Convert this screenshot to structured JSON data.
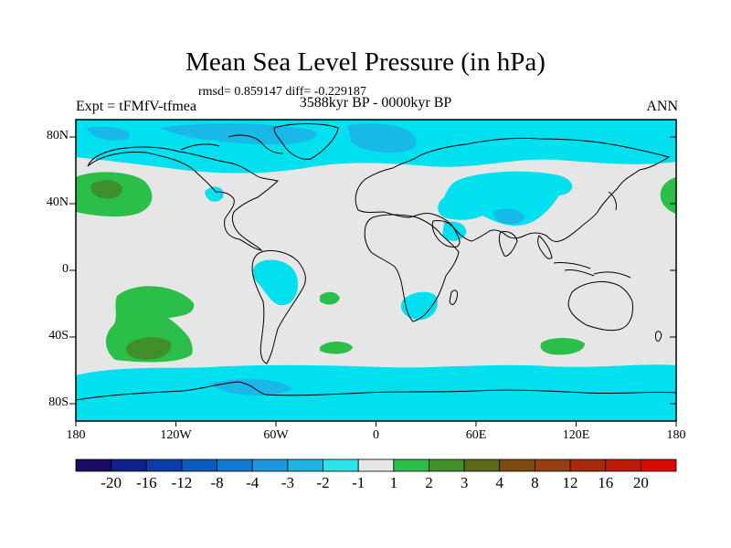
{
  "header": {
    "title": "Mean Sea Level Pressure (in hPa)",
    "stats": "rmsd= 0.859147 diff= -0.229187",
    "experiment": "Expt = tFMfV-tfmea",
    "period": "3588kyr BP - 0000kyr BP",
    "season": "ANN"
  },
  "axes": {
    "lat_labels": [
      "80N",
      "40N",
      "0",
      "40S",
      "80S"
    ],
    "lon_labels": [
      "180",
      "120W",
      "60W",
      "0",
      "60E",
      "120E",
      "180"
    ]
  },
  "colorbar": {
    "colors": [
      "#1b0b63",
      "#10228a",
      "#0b3ea6",
      "#0a5bbd",
      "#0f7ad0",
      "#1a98db",
      "#1fb5e3",
      "#2ee3e7",
      "#e6e6e6",
      "#2bbf49",
      "#3f8f2a",
      "#5a6a1a",
      "#7a4a12",
      "#944012",
      "#a82a0e",
      "#c01a0a",
      "#d80a06"
    ],
    "labels": [
      "-20",
      "-16",
      "-12",
      "-8",
      "-4",
      "-3",
      "-2",
      "-1",
      "1",
      "2",
      "3",
      "4",
      "8",
      "12",
      "16",
      "20"
    ]
  },
  "map_fields": {
    "background_color": "#e6e6e6",
    "polar_band_color": "#00e0ee",
    "stronger_negative_color": "#18b8e8",
    "positive_color": "#2bbf49",
    "strong_positive_color": "#3f8f2a",
    "coastline_color": "#000000"
  }
}
